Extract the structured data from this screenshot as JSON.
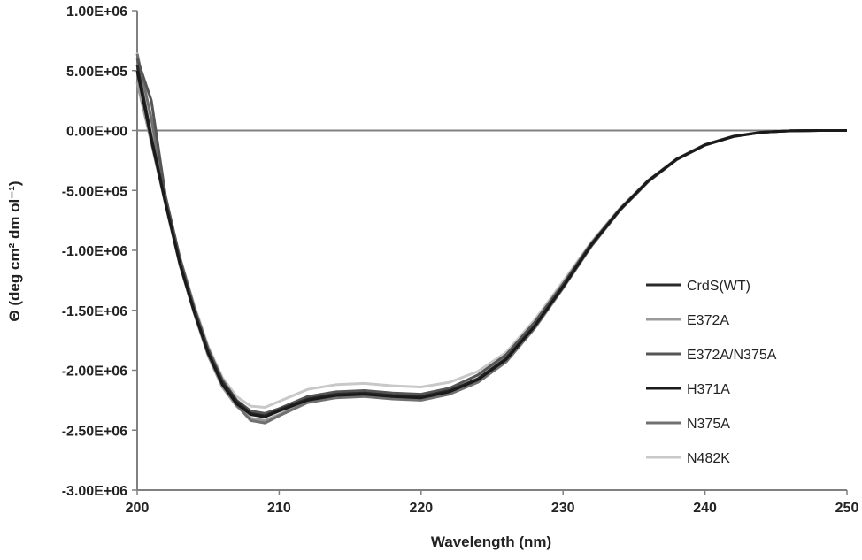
{
  "chart_data": {
    "type": "line",
    "xlabel": "Wavelength (nm)",
    "ylabel": "Θ (deg cm² dm ol⁻¹)",
    "xlim": [
      200,
      250
    ],
    "ylim": [
      -3000000,
      1000000
    ],
    "x_ticks": [
      200,
      210,
      220,
      230,
      240,
      250
    ],
    "x_tick_labels": [
      "200",
      "210",
      "220",
      "230",
      "240",
      "250"
    ],
    "y_ticks": [
      1000000,
      500000,
      0,
      -500000,
      -1000000,
      -1500000,
      -2000000,
      -2500000,
      -3000000
    ],
    "y_tick_labels": [
      "1.00E+06",
      "5.00E+05",
      "0.00E+00",
      "-5.00E+05",
      "-1.00E+06",
      "-1.50E+06",
      "-2.00E+06",
      "-2.50E+06",
      "-3.00E+06"
    ],
    "grid": false,
    "zero_line": true,
    "legend_position": "right-center",
    "x": [
      200,
      201,
      202,
      203,
      204,
      205,
      206,
      207,
      208,
      209,
      210,
      212,
      214,
      216,
      218,
      220,
      222,
      224,
      226,
      228,
      230,
      232,
      234,
      236,
      238,
      240,
      242,
      244,
      246,
      248,
      250
    ],
    "series": [
      {
        "name": "CrdS(WT)",
        "color": "#2a2a2a",
        "values": [
          550000,
          -50000,
          -600000,
          -1100000,
          -1500000,
          -1850000,
          -2100000,
          -2260000,
          -2360000,
          -2380000,
          -2330000,
          -2240000,
          -2200000,
          -2190000,
          -2210000,
          -2220000,
          -2170000,
          -2070000,
          -1900000,
          -1630000,
          -1300000,
          -950000,
          -660000,
          -420000,
          -240000,
          -120000,
          -50000,
          -15000,
          -3000,
          0,
          0
        ]
      },
      {
        "name": "E372A",
        "color": "#9a9a9a",
        "values": [
          400000,
          -100000,
          -620000,
          -1120000,
          -1520000,
          -1880000,
          -2140000,
          -2300000,
          -2400000,
          -2420000,
          -2370000,
          -2260000,
          -2220000,
          -2210000,
          -2230000,
          -2240000,
          -2190000,
          -2090000,
          -1920000,
          -1640000,
          -1310000,
          -960000,
          -665000,
          -425000,
          -242000,
          -122000,
          -50000,
          -15000,
          -3000,
          0,
          0
        ]
      },
      {
        "name": "E372A/N375A",
        "color": "#555555",
        "values": [
          600000,
          250000,
          -550000,
          -1060000,
          -1470000,
          -1820000,
          -2080000,
          -2250000,
          -2340000,
          -2360000,
          -2320000,
          -2220000,
          -2180000,
          -2170000,
          -2190000,
          -2200000,
          -2150000,
          -2040000,
          -1870000,
          -1600000,
          -1280000,
          -940000,
          -655000,
          -418000,
          -238000,
          -118000,
          -48000,
          -14000,
          -3000,
          0,
          0
        ]
      },
      {
        "name": "H371A",
        "color": "#1a1a1a",
        "values": [
          500000,
          -80000,
          -610000,
          -1110000,
          -1510000,
          -1860000,
          -2120000,
          -2280000,
          -2370000,
          -2390000,
          -2340000,
          -2250000,
          -2210000,
          -2200000,
          -2220000,
          -2230000,
          -2180000,
          -2080000,
          -1910000,
          -1635000,
          -1305000,
          -955000,
          -662000,
          -422000,
          -241000,
          -121000,
          -50000,
          -15000,
          -3000,
          0,
          0
        ]
      },
      {
        "name": "N375A",
        "color": "#707070",
        "values": [
          640000,
          100000,
          -580000,
          -1080000,
          -1490000,
          -1840000,
          -2110000,
          -2290000,
          -2420000,
          -2440000,
          -2380000,
          -2270000,
          -2230000,
          -2220000,
          -2240000,
          -2250000,
          -2200000,
          -2100000,
          -1930000,
          -1650000,
          -1315000,
          -965000,
          -668000,
          -428000,
          -244000,
          -123000,
          -51000,
          -15000,
          -3000,
          0,
          0
        ]
      },
      {
        "name": "N482K",
        "color": "#c8c8c8",
        "values": [
          650000,
          0,
          -560000,
          -1050000,
          -1450000,
          -1800000,
          -2060000,
          -2220000,
          -2300000,
          -2310000,
          -2260000,
          -2160000,
          -2120000,
          -2110000,
          -2130000,
          -2140000,
          -2100000,
          -2010000,
          -1850000,
          -1580000,
          -1260000,
          -930000,
          -648000,
          -415000,
          -236000,
          -117000,
          -47000,
          -14000,
          -3000,
          0,
          0
        ]
      }
    ]
  }
}
